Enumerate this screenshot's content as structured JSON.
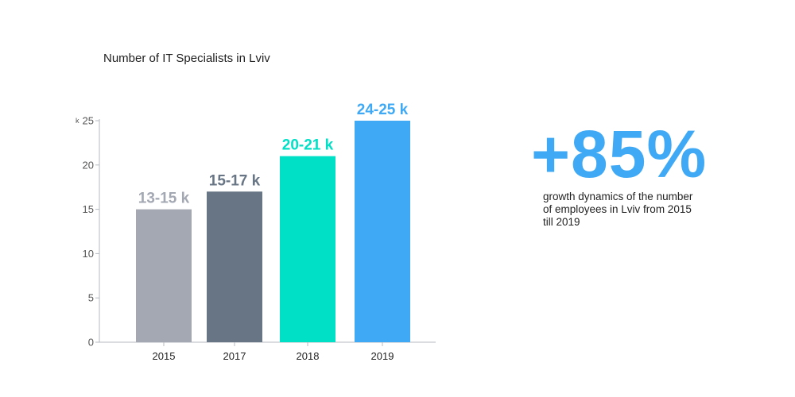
{
  "chart_data": {
    "type": "bar",
    "title": "Number of IT Specialists in Lviv",
    "categories": [
      "2015",
      "2017",
      "2018",
      "2019"
    ],
    "values": [
      15,
      17,
      21,
      25
    ],
    "data_labels": [
      "13-15 k",
      "15-17 k",
      "20-21 k",
      "24-25 k"
    ],
    "bar_colors": [
      "#a3a8b3",
      "#687585",
      "#00e0c6",
      "#3fa9f5"
    ],
    "ylim": [
      0,
      25
    ],
    "yticks": [
      0,
      5,
      10,
      15,
      20,
      25
    ],
    "y_unit": "k",
    "xlabel": "",
    "ylabel": "",
    "grid": false
  },
  "highlight": {
    "value": "+85%",
    "description": "growth dynamics of the number of employees in Lviv from 2015 till 2019",
    "color": "#3fa9f5"
  },
  "colors": {
    "axis": "#b5bac2",
    "tick_text": "#555555",
    "text": "#222222"
  }
}
